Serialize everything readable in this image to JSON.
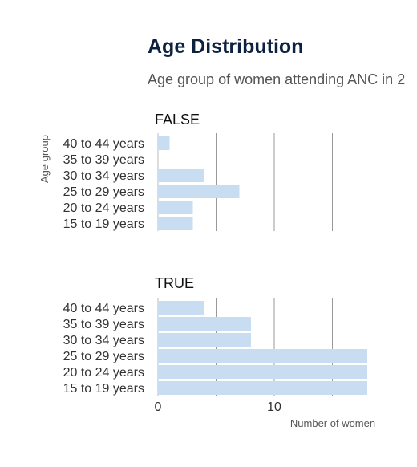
{
  "header": {
    "title": "Age Distribution",
    "subtitle": "Age group of women attending ANC in 2"
  },
  "chart_data": {
    "type": "bar",
    "orientation": "horizontal",
    "title": "Age Distribution",
    "subtitle": "Age group of women attending ANC in 2",
    "xlabel": "Number of women",
    "ylabel": "Age group",
    "xlim": [
      0,
      18
    ],
    "x_ticks": [
      0,
      10
    ],
    "grid": "vertical",
    "bar_color": "#c9ddf2",
    "categories": [
      "15 to 19 years",
      "20 to 24 years",
      "25 to 29 years",
      "30 to 34 years",
      "35 to 39 years",
      "40 to 44 years"
    ],
    "facets": [
      {
        "label": "FALSE",
        "values": [
          3,
          3,
          7,
          4,
          0,
          1
        ]
      },
      {
        "label": "TRUE",
        "values": [
          18,
          18,
          18,
          8,
          8,
          4
        ]
      }
    ]
  }
}
